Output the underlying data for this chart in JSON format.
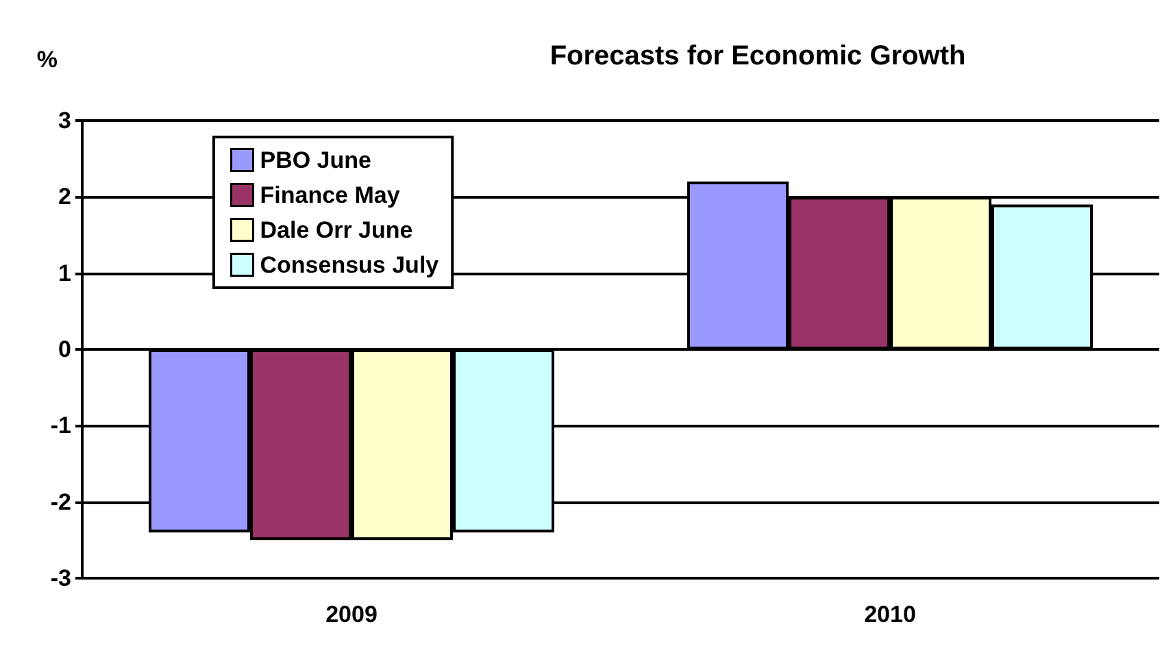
{
  "chart_data": {
    "type": "bar",
    "title": "Forecasts for Economic Growth",
    "ylabel": "%",
    "categories": [
      "2009",
      "2010"
    ],
    "series": [
      {
        "name": "PBO June",
        "color": "#9999ff",
        "values": [
          -2.4,
          2.2
        ]
      },
      {
        "name": "Finance May",
        "color": "#993366",
        "values": [
          -2.5,
          2.0
        ]
      },
      {
        "name": "Dale Orr June",
        "color": "#ffffcc",
        "values": [
          -2.5,
          2.0
        ]
      },
      {
        "name": "Consensus July",
        "color": "#ccffff",
        "values": [
          -2.4,
          1.9
        ]
      }
    ],
    "ylim": [
      -3,
      3
    ],
    "yticks": [
      -3,
      -2,
      -1,
      0,
      1,
      2,
      3
    ],
    "grid": "y",
    "legend": "top left"
  }
}
